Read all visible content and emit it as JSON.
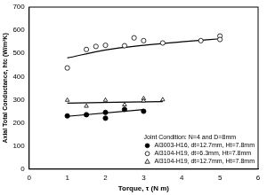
{
  "chart_data": {
    "type": "scatter",
    "x_label": "Torque, τ (N m)",
    "y_label": "Axial Total Conductance, htc (W/m²K)",
    "xlim": [
      0,
      6
    ],
    "xticks": [
      0,
      1,
      2,
      3,
      4,
      5,
      6
    ],
    "ylim": [
      0,
      700
    ],
    "yticks": [
      0,
      100,
      200,
      300,
      400,
      500,
      600,
      700
    ],
    "grid": false,
    "legend": "lower right",
    "legend_title": "Joint Condition: N=4 and D=8mm",
    "series": [
      {
        "name": "Al3003-H16, dt=12.7mm, Ht=7.8mm",
        "color": "#000000",
        "marker": "circle",
        "x": [
          1,
          1.5,
          2,
          2,
          2.5,
          3
        ],
        "values": [
          230,
          235,
          220,
          245,
          258,
          250
        ],
        "line_style": "solid",
        "fit": {
          "x": [
            1,
            3
          ],
          "values": [
            228,
            257
          ]
        }
      },
      {
        "name": "Al3104-H19, dt=6.3mm, Ht=7.8mm",
        "color": "#000000",
        "marker": "circle-open",
        "x": [
          1,
          1.5,
          1.75,
          2,
          2.5,
          2.75,
          3,
          3.5,
          4.5,
          5,
          5
        ],
        "values": [
          437,
          517,
          530,
          535,
          533,
          567,
          555,
          545,
          555,
          575,
          560
        ],
        "line_style": "solid",
        "fit": {
          "x": [
            1,
            2,
            3,
            4,
            5
          ],
          "values": [
            480,
            515,
            535,
            550,
            563
          ]
        }
      },
      {
        "name": "Al3104-H19, dt=12.7mm, Ht=7.8mm",
        "color": "#000000",
        "marker": "triangle-open",
        "x": [
          1,
          1.5,
          2,
          2.5,
          3,
          3,
          3.5
        ],
        "values": [
          298,
          272,
          298,
          278,
          305,
          295,
          300
        ],
        "line_style": "solid",
        "fit": {
          "x": [
            1,
            3.5
          ],
          "values": [
            285,
            292
          ]
        }
      }
    ]
  }
}
